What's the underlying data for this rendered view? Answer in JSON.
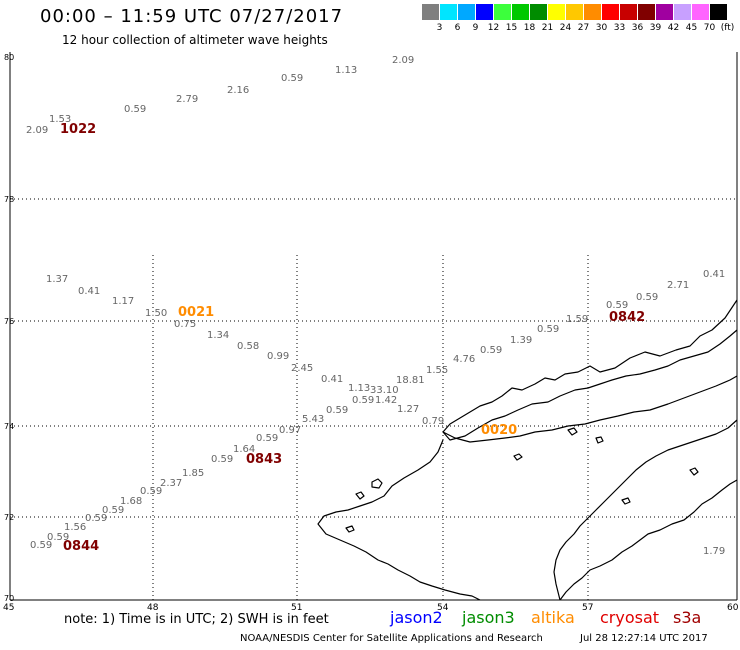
{
  "title": "00:00 – 11:59 UTC 07/27/2017",
  "subtitle": "12 hour collection of altimeter wave heights",
  "colorbar": {
    "colors": [
      "#7f7f7f",
      "#00e5ff",
      "#00a8ff",
      "#0000ff",
      "#3cff3c",
      "#00c800",
      "#008c00",
      "#ffff00",
      "#ffc800",
      "#ff8c00",
      "#ff0000",
      "#c80000",
      "#800000",
      "#a000a0",
      "#c8a0ff",
      "#ff64ff",
      "#000000"
    ],
    "labels": [
      "3",
      "6",
      "9",
      "12",
      "15",
      "18",
      "21",
      "24",
      "27",
      "30",
      "33",
      "36",
      "39",
      "42",
      "45",
      "70",
      "(ft)"
    ]
  },
  "axes": {
    "lat_labels": [
      "80",
      "78",
      "76",
      "74",
      "72",
      "70"
    ],
    "lon_labels": [
      "45",
      "48",
      "51",
      "54",
      "57",
      "60"
    ]
  },
  "swh_values": [
    {
      "text": "2.09",
      "color": "#666666"
    },
    {
      "text": "1.13",
      "color": "#666666"
    },
    {
      "text": "0.59",
      "color": "#666666"
    },
    {
      "text": "2.16",
      "color": "#666666"
    },
    {
      "text": "2.79",
      "color": "#666666"
    },
    {
      "text": "0.59",
      "color": "#666666"
    },
    {
      "text": "1.53",
      "color": "#666666"
    },
    {
      "text": "2.09",
      "color": "#666666"
    },
    {
      "text": "1.37",
      "color": "#666666"
    },
    {
      "text": "0.41",
      "color": "#666666"
    },
    {
      "text": "1.17",
      "color": "#666666"
    },
    {
      "text": "1.50",
      "color": "#666666"
    },
    {
      "text": "0.75",
      "color": "#666666"
    },
    {
      "text": "1.34",
      "color": "#666666"
    },
    {
      "text": "0.58",
      "color": "#666666"
    },
    {
      "text": "0.99",
      "color": "#666666"
    },
    {
      "text": "2.45",
      "color": "#666666"
    },
    {
      "text": "0.41",
      "color": "#666666"
    },
    {
      "text": "1.13",
      "color": "#666666"
    },
    {
      "text": "33.10",
      "color": "#c00000"
    },
    {
      "text": "18.81",
      "color": "#008c00"
    },
    {
      "text": "0.59",
      "color": "#666666"
    },
    {
      "text": "1.42",
      "color": "#666666"
    },
    {
      "text": "1.55",
      "color": "#666666"
    },
    {
      "text": "4.76",
      "color": "#00c8e6"
    },
    {
      "text": "0.59",
      "color": "#666666"
    },
    {
      "text": "1.39",
      "color": "#666666"
    },
    {
      "text": "0.59",
      "color": "#666666"
    },
    {
      "text": "1.59",
      "color": "#666666"
    },
    {
      "text": "1.27",
      "color": "#666666"
    },
    {
      "text": "0.59",
      "color": "#666666"
    },
    {
      "text": "0.79",
      "color": "#666666"
    },
    {
      "text": "0.97",
      "color": "#666666"
    },
    {
      "text": "5.43",
      "color": "#00c8e6"
    },
    {
      "text": "0.59",
      "color": "#666666"
    },
    {
      "text": "1.64",
      "color": "#666666"
    },
    {
      "text": "0.59",
      "color": "#666666"
    },
    {
      "text": "1.85",
      "color": "#666666"
    },
    {
      "text": "2.37",
      "color": "#666666"
    },
    {
      "text": "0.59",
      "color": "#666666"
    },
    {
      "text": "1.68",
      "color": "#666666"
    },
    {
      "text": "0.59",
      "color": "#666666"
    },
    {
      "text": "0.59",
      "color": "#666666"
    },
    {
      "text": "1.56",
      "color": "#666666"
    },
    {
      "text": "0.59",
      "color": "#666666"
    },
    {
      "text": "0.59",
      "color": "#666666"
    },
    {
      "text": "0.59",
      "color": "#666666"
    },
    {
      "text": "0.59",
      "color": "#666666"
    },
    {
      "text": "2.71",
      "color": "#666666"
    },
    {
      "text": "0.41",
      "color": "#666666"
    },
    {
      "text": "1.79",
      "color": "#666666"
    }
  ],
  "pass_labels": [
    {
      "text": "1022",
      "color": "#800000"
    },
    {
      "text": "0021",
      "color": "#ff8c00"
    },
    {
      "text": "0842",
      "color": "#800000"
    },
    {
      "text": "0020",
      "color": "#ff8c00"
    },
    {
      "text": "0843",
      "color": "#800000"
    },
    {
      "text": "0844",
      "color": "#800000"
    }
  ],
  "note": "note:  1) Time is in UTC; 2) SWH is in feet",
  "legend": [
    {
      "text": "jason2",
      "color": "#0000ff"
    },
    {
      "text": "jason3",
      "color": "#008c00"
    },
    {
      "text": "altika",
      "color": "#ff8c00"
    },
    {
      "text": "cryosat",
      "color": "#e00000"
    },
    {
      "text": "s3a",
      "color": "#a00000"
    }
  ],
  "credit": "NOAA/NESDIS Center for Satellite Applications and Research",
  "timestamp": "Jul 28 12:27:14 UTC 2017"
}
